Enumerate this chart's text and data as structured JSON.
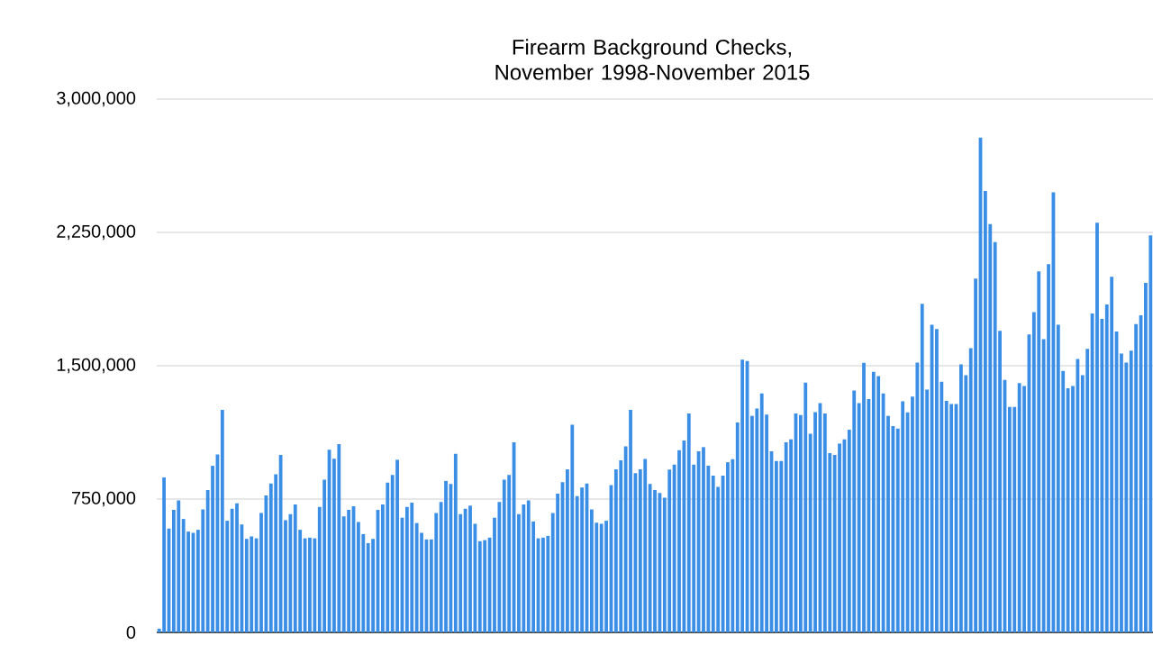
{
  "chart_data": {
    "type": "bar",
    "title": "Firearm Background Checks, November 1998-November 2015",
    "categories": [
      null,
      null,
      null,
      null,
      null,
      null,
      null,
      null,
      null,
      null,
      null,
      null,
      null,
      null,
      null,
      null,
      null,
      null,
      null,
      null,
      null,
      null,
      null,
      null,
      null,
      null,
      null,
      null,
      null,
      null,
      null,
      null,
      null,
      null,
      null,
      null,
      null,
      null,
      null,
      null,
      null,
      null,
      null,
      null,
      null,
      null,
      null,
      null,
      null,
      null,
      null,
      null,
      null,
      null,
      null,
      null,
      null,
      null,
      null,
      null,
      null,
      null,
      null,
      null,
      null,
      null,
      null,
      null,
      null,
      null,
      null,
      null,
      null,
      null,
      null,
      null,
      null,
      null,
      null,
      null,
      null,
      null,
      null,
      null,
      null,
      null,
      null,
      null,
      null,
      null,
      null,
      null,
      null,
      null,
      null,
      null,
      null,
      null,
      null,
      null,
      null,
      null,
      null,
      null,
      null,
      null,
      null,
      null,
      null,
      null,
      null,
      null,
      null,
      null,
      null,
      null,
      null,
      null,
      null,
      null,
      null,
      null,
      null,
      null,
      null,
      null,
      null,
      null,
      null,
      null,
      null,
      null,
      null,
      null,
      null,
      null,
      null,
      null,
      null,
      null,
      null,
      null,
      null,
      null,
      null,
      null,
      null,
      null,
      null,
      null,
      null,
      null,
      null,
      null,
      null,
      null,
      null,
      null,
      null,
      null,
      null,
      null,
      null,
      null,
      null,
      null,
      null,
      null,
      null,
      null,
      null,
      null,
      null,
      null,
      null,
      null,
      null,
      null,
      null,
      null,
      null,
      null,
      null,
      null,
      null,
      null,
      null,
      null,
      null,
      null,
      null,
      null,
      null,
      null,
      null,
      null,
      null,
      null,
      null,
      null,
      null,
      null,
      null,
      null,
      null
    ],
    "values": [
      21000,
      872000,
      584000,
      689000,
      743000,
      638000,
      567000,
      560000,
      577000,
      692000,
      801000,
      937000,
      1001000,
      1252000,
      628000,
      696000,
      726000,
      607000,
      526000,
      540000,
      529000,
      672000,
      770000,
      838000,
      889000,
      998000,
      631000,
      665000,
      720000,
      577000,
      529000,
      533000,
      529000,
      706000,
      859000,
      1028000,
      977000,
      1059000,
      652000,
      689000,
      709000,
      621000,
      553000,
      502000,
      526000,
      689000,
      720000,
      842000,
      886000,
      971000,
      645000,
      706000,
      730000,
      615000,
      560000,
      523000,
      523000,
      672000,
      733000,
      852000,
      835000,
      1005000,
      665000,
      696000,
      713000,
      611000,
      513000,
      519000,
      533000,
      645000,
      733000,
      859000,
      886000,
      1069000,
      665000,
      719000,
      743000,
      624000,
      529000,
      533000,
      543000,
      672000,
      781000,
      845000,
      917000,
      1168000,
      767000,
      815000,
      838000,
      692000,
      617000,
      611000,
      628000,
      828000,
      917000,
      968000,
      1046000,
      1252000,
      896000,
      917000,
      975000,
      835000,
      801000,
      784000,
      757000,
      916000,
      944000,
      1025000,
      1079000,
      1232000,
      944000,
      1018000,
      1042000,
      937000,
      882000,
      818000,
      882000,
      957000,
      974000,
      1181000,
      1534000,
      1527000,
      1218000,
      1259000,
      1344000,
      1225000,
      1018000,
      964000,
      964000,
      1069000,
      1086000,
      1232000,
      1222000,
      1405000,
      1117000,
      1239000,
      1290000,
      1232000,
      1008000,
      998000,
      1062000,
      1086000,
      1140000,
      1361000,
      1290000,
      1517000,
      1313000,
      1466000,
      1442000,
      1344000,
      1218000,
      1161000,
      1147000,
      1300000,
      1238000,
      1326000,
      1518000,
      1848000,
      1366000,
      1730000,
      1707000,
      1410000,
      1302000,
      1285000,
      1285000,
      1508000,
      1447000,
      1599000,
      1990000,
      2783000,
      2483000,
      2297000,
      2196000,
      1697000,
      1420000,
      1268000,
      1268000,
      1403000,
      1386000,
      1676000,
      1801000,
      2031000,
      1649000,
      2071000,
      2476000,
      1730000,
      1471000,
      1373000,
      1386000,
      1538000,
      1447000,
      1595000,
      1794000,
      2304000,
      1764000,
      1845000,
      2000000,
      1693000,
      1568000,
      1518000,
      1585000,
      1734000,
      1784000,
      1966000,
      2233000
    ],
    "color": "#3a8ee6",
    "ylim": [
      0,
      3000000
    ],
    "yticks": [
      0,
      {
        "value": 750000,
        "label": "750,000"
      },
      {
        "value": 1500000,
        "label": "1,500,000"
      },
      {
        "value": 2250000,
        "label": "2,250,000"
      },
      {
        "value": 3000000,
        "label": "3,000,000"
      }
    ],
    "grid": true
  }
}
